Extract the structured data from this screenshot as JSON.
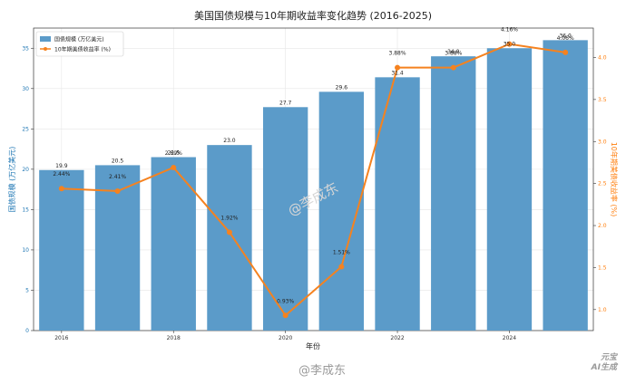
{
  "chart_data": {
    "type": "bar+line",
    "title": "美国国债规模与10年期收益率变化趋势 (2016-2025)",
    "xlabel": "年份",
    "ylabel_left": "国债规模 (万亿美元)",
    "ylabel_right": "10年期美债收益率 (%)",
    "x": [
      2016,
      2017,
      2018,
      2019,
      2020,
      2021,
      2022,
      2023,
      2024,
      2025
    ],
    "x_ticks": [
      2016,
      2018,
      2020,
      2022,
      2024
    ],
    "ylim_left": [
      0,
      37.5
    ],
    "ylim_right": [
      0.75,
      4.35
    ],
    "y_ticks_left": [
      0,
      5,
      10,
      15,
      20,
      25,
      30,
      35
    ],
    "y_ticks_right": [
      1.0,
      1.5,
      2.0,
      2.5,
      3.0,
      3.5,
      4.0
    ],
    "series": [
      {
        "name": "国债规模 (万亿美元)",
        "kind": "bar",
        "color": "#5b9bc9",
        "values": [
          19.9,
          20.5,
          21.5,
          23.0,
          27.7,
          29.6,
          31.4,
          34.0,
          35.0,
          36.0
        ],
        "labels": [
          "19.9",
          "20.5",
          "21.5",
          "23.0",
          "27.7",
          "29.6",
          "31.4",
          "34.0",
          "35.0",
          "36.0"
        ]
      },
      {
        "name": "10年期美债收益率 (%)",
        "kind": "line",
        "color": "#f5821f",
        "values": [
          2.44,
          2.41,
          2.69,
          1.92,
          0.93,
          1.51,
          3.88,
          3.88,
          4.16,
          4.06
        ],
        "labels": [
          "2.44%",
          "2.41%",
          "2.69%",
          "1.92%",
          "0.93%",
          "1.51%",
          "3.88%",
          "3.88%",
          "4.16%",
          "4.06%"
        ]
      }
    ],
    "grid": true,
    "legend": "top-left"
  },
  "watermarks": {
    "center": "@李成东",
    "bottom": "@李成东",
    "logo_line1": "元宝",
    "logo_line2": "AI生成"
  }
}
